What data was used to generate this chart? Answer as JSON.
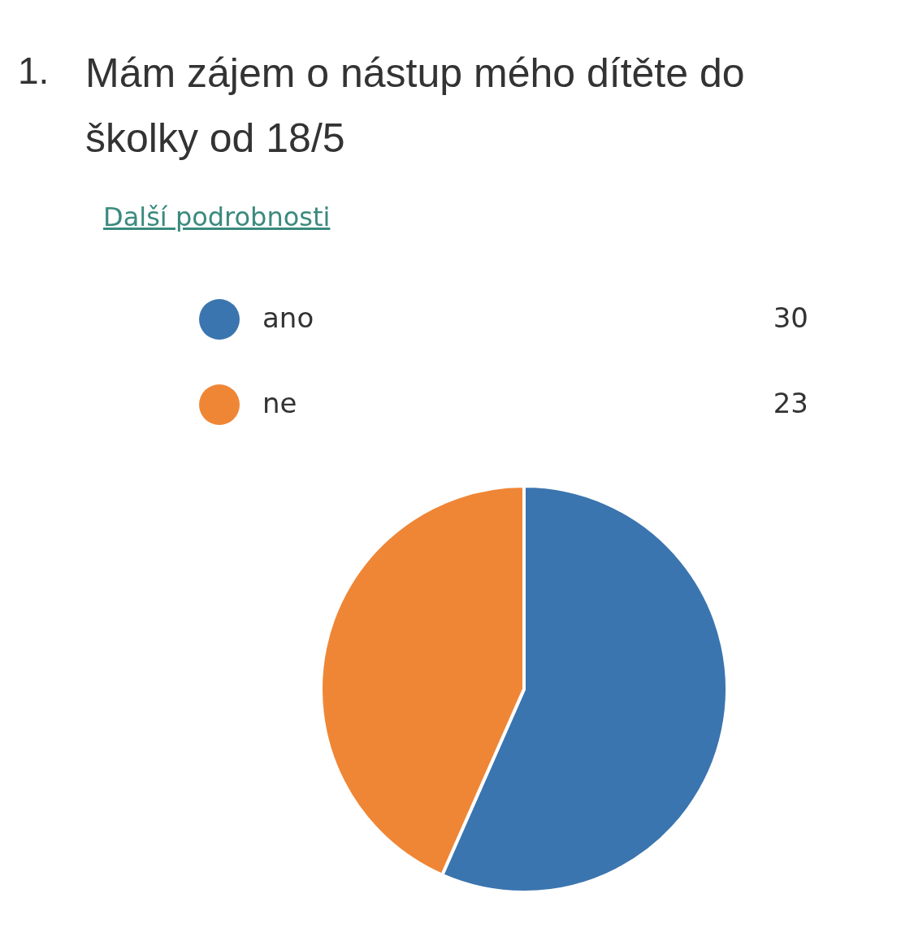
{
  "chart_data": {
    "type": "pie",
    "title": "Mám zájem o nástup mého dítěte do školky od 18/5",
    "annotations": [
      "1.",
      "Další podrobnosti"
    ],
    "categories": [
      "ano",
      "ne"
    ],
    "values": [
      30,
      23
    ],
    "colors": [
      "#3b75af",
      "#ef8636"
    ],
    "data_labels": true,
    "legend": "top"
  }
}
